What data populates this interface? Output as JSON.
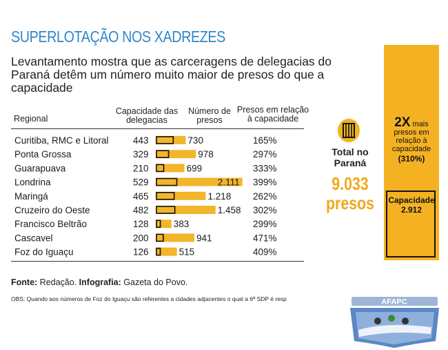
{
  "title": "SUPERLOTAÇÃO NOS XADREZES",
  "subtitle": "Levantamento mostra que as carceragens de delegacias do Paraná detêm um número muito maior de presos do que a capacidade",
  "headers": {
    "regional": "Regional",
    "capacity": "Capacidade das delegacias",
    "prisoners": "Número de presos",
    "ratio": "Presos em relação à capacidade"
  },
  "chart_data": {
    "type": "bar",
    "categories": [
      "Curitiba, RMC e Litoral",
      "Ponta Grossa",
      "Guarapuava",
      "Londrina",
      "Maringá",
      "Cruzeiro do Oeste",
      "Francisco Beltrão",
      "Cascavel",
      "Foz do Iguaçu"
    ],
    "series": [
      {
        "name": "Capacidade das delegacias",
        "values": [
          443,
          329,
          210,
          529,
          465,
          482,
          128,
          200,
          126
        ],
        "labels": [
          "443",
          "329",
          "210",
          "529",
          "465",
          "482",
          "128",
          "200",
          "126"
        ]
      },
      {
        "name": "Número de presos",
        "values": [
          730,
          978,
          699,
          2111,
          1218,
          1458,
          383,
          941,
          515
        ],
        "labels": [
          "730",
          "978",
          "699",
          "2.111",
          "1.218",
          "1.458",
          "383",
          "941",
          "515"
        ]
      }
    ],
    "ratio_labels": [
      "165%",
      "297%",
      "333%",
      "399%",
      "262%",
      "302%",
      "299%",
      "471%",
      "409%"
    ],
    "colors": {
      "capacity_fill": "#f3b52a",
      "capacity_outline": "#111111",
      "prisoners_fill": "#f3b52a"
    }
  },
  "total": {
    "label": "Total no Paraná",
    "value_line1": "9.033",
    "value_line2": "presos",
    "icon": "jail-cell-icon"
  },
  "side_panel": {
    "multiplier": "2X",
    "multiplier_text": "mais presos em relação à capacidade",
    "percent": "(310%)",
    "capacity_label": "Capacidade",
    "capacity_value": "2.912"
  },
  "source": {
    "fonte_label": "Fonte:",
    "fonte_value": "Redação.",
    "infografia_label": "Infografia:",
    "infografia_value": "Gazeta do Povo."
  },
  "obs": "OBS: Quando aos números de Foz do Iguaçu são referentes a cidades adjacentes o qual a 6ª SDP é resp",
  "logo": {
    "text": "AFAPC",
    "colors": {
      "banner": "#9db6d8",
      "shield": "#5a87c5",
      "text": "#ffffff"
    }
  }
}
